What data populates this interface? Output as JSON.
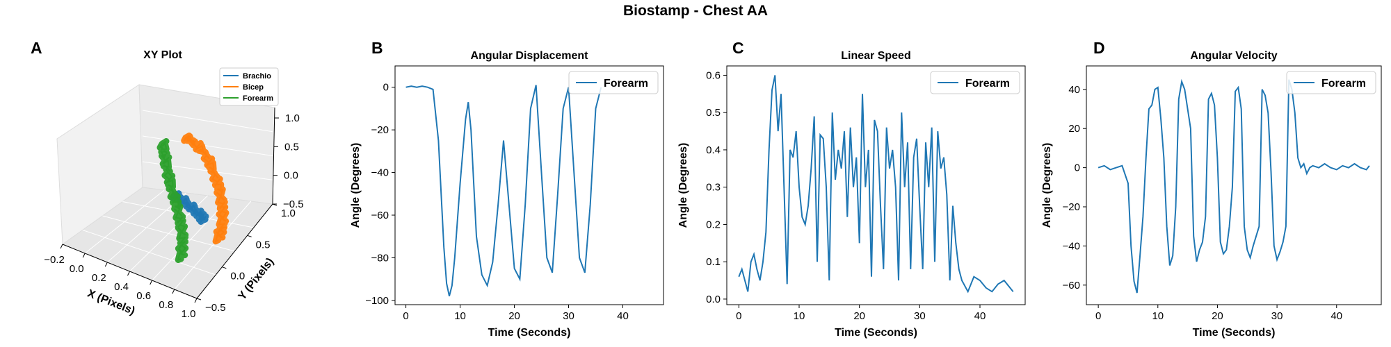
{
  "figure": {
    "title": "Biostamp - Chest AA",
    "panel_letters": [
      "A",
      "B",
      "C",
      "D"
    ]
  },
  "colors": {
    "brachio": "#1f77b4",
    "bicep": "#ff7f0e",
    "forearm": "#2ca02c",
    "line": "#1f77b4"
  },
  "chart_data": [
    {
      "type": "line3d",
      "panel": "A",
      "title": "XY Plot",
      "xlabel": "X (Pixels)",
      "ylabel": "Y (Pixels)",
      "zlabel": "",
      "xlim": [
        -0.2,
        1.0
      ],
      "ylim": [
        -0.5,
        1.0
      ],
      "zlim": [
        -0.5,
        1.0
      ],
      "x_ticks": [
        "−0.2",
        "0.0",
        "0.2",
        "0.4",
        "0.6",
        "0.8",
        "1.0"
      ],
      "y_ticks": [
        "−0.5",
        "0.0",
        "0.5",
        "1.0"
      ],
      "z_ticks": [
        "−0.5",
        "0.0",
        "0.5",
        "1.0"
      ],
      "legend": [
        "Brachio",
        "Bicep",
        "Forearm"
      ],
      "legend_position": "top-right",
      "series": [
        {
          "name": "Brachio",
          "color": "#1f77b4",
          "points": [
            [
              0.35,
              0.45,
              0.05
            ],
            [
              0.42,
              0.42,
              0.05
            ],
            [
              0.5,
              0.38,
              0.04
            ],
            [
              0.58,
              0.34,
              0.03
            ],
            [
              0.65,
              0.3,
              0.03
            ],
            [
              0.7,
              0.26,
              0.02
            ]
          ]
        },
        {
          "name": "Bicep",
          "color": "#ff7f0e",
          "points": [
            [
              0.25,
              0.85,
              0.6
            ],
            [
              0.35,
              0.82,
              0.6
            ],
            [
              0.48,
              0.75,
              0.55
            ],
            [
              0.6,
              0.65,
              0.45
            ],
            [
              0.7,
              0.55,
              0.3
            ],
            [
              0.78,
              0.45,
              0.12
            ],
            [
              0.82,
              0.35,
              -0.05
            ],
            [
              0.82,
              0.28,
              -0.2
            ]
          ]
        },
        {
          "name": "Forearm",
          "color": "#2ca02c",
          "points": [
            [
              0.05,
              0.85,
              0.4
            ],
            [
              0.12,
              0.75,
              0.3
            ],
            [
              0.2,
              0.62,
              0.2
            ],
            [
              0.3,
              0.5,
              0.08
            ],
            [
              0.4,
              0.38,
              -0.05
            ],
            [
              0.5,
              0.25,
              -0.15
            ],
            [
              0.58,
              0.12,
              -0.28
            ],
            [
              0.62,
              0.0,
              -0.45
            ]
          ]
        }
      ]
    },
    {
      "type": "line",
      "panel": "B",
      "title": "Angular Displacement",
      "xlabel": "Time (Seconds)",
      "ylabel": "Angle (Degrees)",
      "xlim": [
        -2,
        47.5
      ],
      "ylim": [
        -102,
        10
      ],
      "xticks": [
        0,
        10,
        20,
        30,
        40
      ],
      "yticks": [
        0,
        -20,
        -40,
        -60,
        -80,
        -100
      ],
      "legend": [
        "Forearm"
      ],
      "legend_position": "top-right",
      "series": [
        {
          "name": "Forearm",
          "x": [
            0,
            1,
            2,
            3,
            4,
            5,
            6,
            6.5,
            7,
            7.5,
            8,
            8.5,
            9,
            10,
            11,
            11.5,
            12,
            13,
            14,
            15,
            16,
            17,
            18,
            19,
            20,
            21,
            22,
            23,
            24,
            25,
            26,
            27,
            28,
            29,
            30,
            31,
            32,
            33,
            34,
            35,
            36
          ],
          "y": [
            0,
            0.5,
            0,
            0.5,
            0,
            -1,
            -25,
            -50,
            -75,
            -92,
            -98,
            -93,
            -80,
            -45,
            -15,
            -7,
            -20,
            -70,
            -88,
            -93,
            -82,
            -55,
            -25,
            -55,
            -85,
            -90,
            -55,
            -10,
            1,
            -40,
            -80,
            -87,
            -50,
            -10,
            0,
            -40,
            -80,
            -87,
            -55,
            -10,
            0
          ]
        }
      ]
    },
    {
      "type": "line",
      "panel": "C",
      "title": "Linear Speed",
      "xlabel": "Time (Seconds)",
      "ylabel": "Angle (Degrees)",
      "xlim": [
        -2,
        47.5
      ],
      "ylim": [
        -0.015,
        0.625
      ],
      "xticks": [
        0,
        10,
        20,
        30,
        40
      ],
      "yticks": [
        0.0,
        0.1,
        0.2,
        0.3,
        0.4,
        0.5,
        0.6
      ],
      "legend": [
        "Forearm"
      ],
      "legend_position": "top-right",
      "series": [
        {
          "name": "Forearm",
          "x": [
            0,
            0.5,
            1,
            1.5,
            2,
            2.5,
            3,
            3.5,
            4,
            4.5,
            5,
            5.5,
            6,
            6.5,
            7,
            7.5,
            8,
            8.5,
            9,
            9.5,
            10,
            10.5,
            11,
            11.5,
            12,
            12.5,
            13,
            13.5,
            14,
            14.5,
            15,
            15.5,
            16,
            16.5,
            17,
            17.5,
            18,
            18.5,
            19,
            19.5,
            20,
            20.5,
            21,
            21.5,
            22,
            22.5,
            23,
            23.5,
            24,
            24.5,
            25,
            25.5,
            26,
            26.5,
            27,
            27.5,
            28,
            28.5,
            29,
            29.5,
            30,
            30.5,
            31,
            31.5,
            32,
            32.5,
            33,
            33.5,
            34,
            34.5,
            35,
            35.5,
            36,
            36.5,
            37,
            38,
            39,
            40,
            41,
            42,
            43,
            44,
            45,
            45.5
          ],
          "y": [
            0.06,
            0.08,
            0.05,
            0.02,
            0.1,
            0.12,
            0.08,
            0.05,
            0.1,
            0.18,
            0.4,
            0.56,
            0.6,
            0.45,
            0.55,
            0.3,
            0.04,
            0.4,
            0.38,
            0.45,
            0.3,
            0.22,
            0.2,
            0.25,
            0.35,
            0.49,
            0.1,
            0.44,
            0.43,
            0.3,
            0.05,
            0.5,
            0.32,
            0.4,
            0.35,
            0.45,
            0.22,
            0.46,
            0.3,
            0.38,
            0.15,
            0.55,
            0.3,
            0.4,
            0.06,
            0.48,
            0.45,
            0.25,
            0.08,
            0.46,
            0.35,
            0.4,
            0.3,
            0.05,
            0.5,
            0.3,
            0.42,
            0.08,
            0.38,
            0.43,
            0.25,
            0.08,
            0.42,
            0.3,
            0.46,
            0.1,
            0.45,
            0.35,
            0.38,
            0.28,
            0.05,
            0.25,
            0.15,
            0.08,
            0.05,
            0.02,
            0.06,
            0.05,
            0.03,
            0.02,
            0.04,
            0.05,
            0.03,
            0.02
          ]
        }
      ]
    },
    {
      "type": "line",
      "panel": "D",
      "title": "Angular Velocity",
      "xlabel": "Time (Seconds)",
      "ylabel": "Angle (Degrees)",
      "xlim": [
        -2,
        47.5
      ],
      "ylim": [
        -70,
        52
      ],
      "xticks": [
        0,
        10,
        20,
        30,
        40
      ],
      "yticks": [
        40,
        20,
        0,
        -20,
        -40,
        -60
      ],
      "legend": [
        "Forearm"
      ],
      "legend_position": "top-right",
      "series": [
        {
          "name": "Forearm",
          "x": [
            0,
            1,
            2,
            3,
            4,
            5,
            5.5,
            6,
            6.5,
            7,
            7.5,
            8,
            8.5,
            9,
            9.5,
            10,
            10.5,
            11,
            11.5,
            12,
            12.5,
            13,
            13.5,
            14,
            14.5,
            15,
            15.5,
            16,
            16.5,
            17,
            17.5,
            18,
            18.5,
            19,
            19.5,
            20,
            20.5,
            21,
            21.5,
            22,
            22.5,
            23,
            23.5,
            24,
            24.5,
            25,
            25.5,
            26,
            26.5,
            27,
            27.5,
            28,
            28.5,
            29,
            29.5,
            30,
            30.5,
            31,
            31.5,
            32,
            32.5,
            33,
            33.5,
            34,
            34.5,
            35,
            35.5,
            36,
            37,
            38,
            39,
            40,
            41,
            42,
            43,
            44,
            45,
            45.5
          ],
          "y": [
            0,
            1,
            -1,
            0,
            1,
            -8,
            -40,
            -58,
            -64,
            -45,
            -25,
            5,
            30,
            32,
            40,
            41,
            25,
            5,
            -30,
            -50,
            -45,
            -20,
            35,
            44,
            40,
            30,
            20,
            -35,
            -48,
            -42,
            -38,
            -25,
            35,
            38,
            32,
            5,
            -38,
            -44,
            -42,
            -30,
            -10,
            39,
            41,
            30,
            -30,
            -42,
            -46,
            -40,
            -35,
            -30,
            40,
            37,
            28,
            -2,
            -40,
            -47,
            -43,
            -38,
            -30,
            45,
            40,
            28,
            5,
            0,
            2,
            -3,
            0,
            1,
            0,
            2,
            0,
            -1,
            1,
            0,
            2,
            0,
            -1,
            1
          ]
        }
      ]
    }
  ]
}
